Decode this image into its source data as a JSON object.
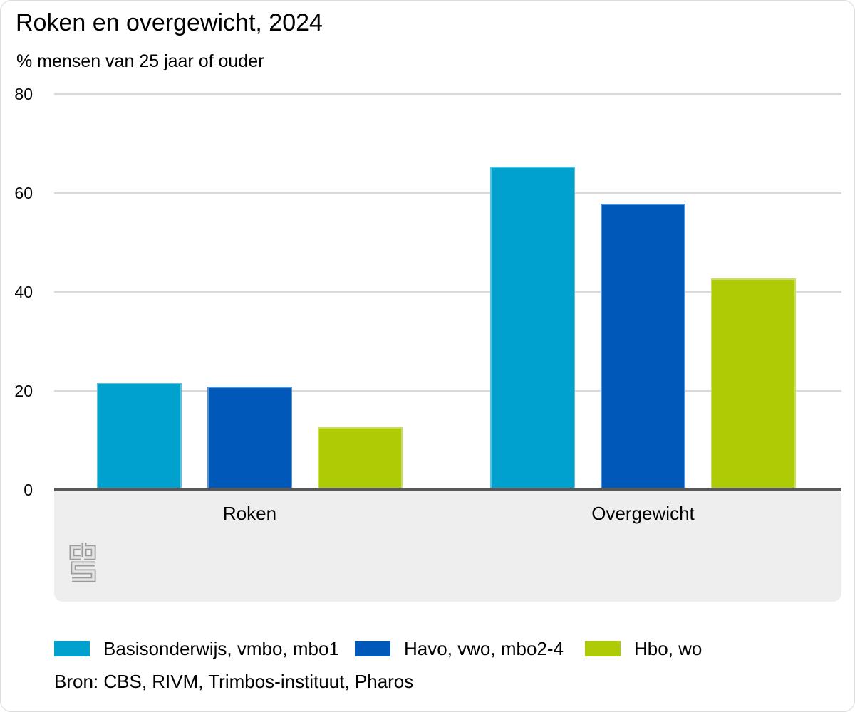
{
  "header": {
    "title": "Roken en overgewicht, 2024",
    "subtitle": "% mensen van 25 jaar of ouder"
  },
  "chart_data": {
    "type": "bar",
    "categories": [
      "Roken",
      "Overgewicht"
    ],
    "series": [
      {
        "name": "Basisonderwijs, vmbo, mbo1",
        "color": "#00a1cd",
        "values": [
          21.6,
          65.3
        ]
      },
      {
        "name": "Havo, vwo, mbo2-4",
        "color": "#0058b8",
        "values": [
          20.8,
          57.9
        ]
      },
      {
        "name": "Hbo, wo",
        "color": "#afcb05",
        "values": [
          12.6,
          42.8
        ]
      }
    ],
    "xlabel": "",
    "ylabel": "% mensen van 25 jaar of ouder",
    "ylim": [
      0,
      80
    ],
    "yticks": [
      0,
      20,
      40,
      60,
      80
    ],
    "grid": "horizontal",
    "legend_position": "bottom"
  },
  "footer": {
    "source": "Bron: CBS, RIVM, Trimbos-instituut, Pharos"
  },
  "logo": {
    "name": "cbs-logo"
  },
  "colors": {
    "axis_line": "#58585a",
    "gridline": "#d9d9d9",
    "band_background": "#eeeeee",
    "text": "#000000",
    "logo_gray": "#9b9b9b"
  }
}
